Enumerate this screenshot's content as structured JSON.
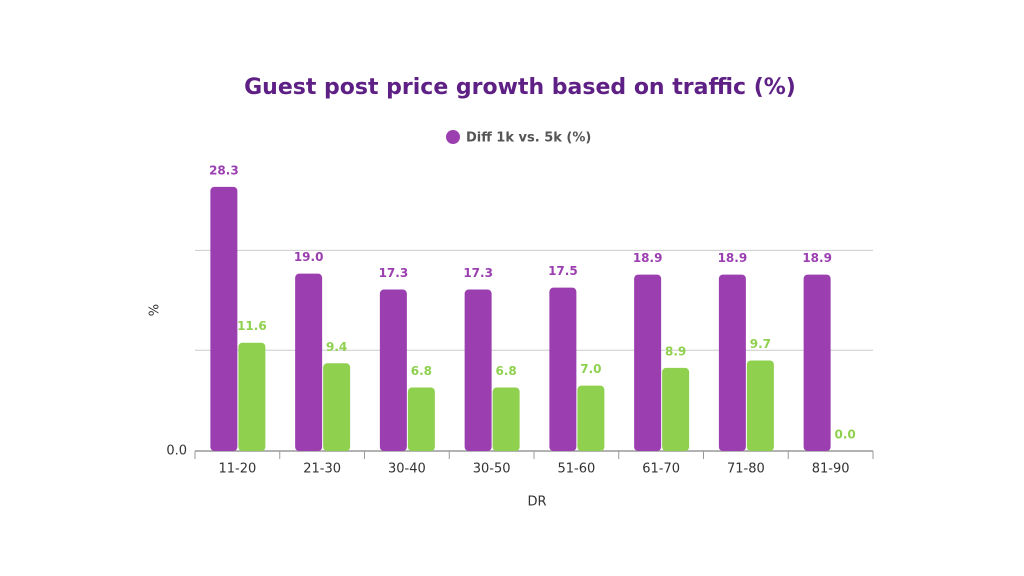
{
  "chart_data": {
    "type": "bar",
    "title": "Guest post price growth based on traffic (%)",
    "x_label": "DR",
    "y_label": "%",
    "categories": [
      "11-20",
      "21-30",
      "30-40",
      "30-50",
      "51-60",
      "61-70",
      "71-80",
      "81-90"
    ],
    "series": [
      {
        "name": "Diff 1k vs. 5k (%)",
        "color": "#9b3fb0",
        "values": [
          28.3,
          19.0,
          17.3,
          17.3,
          17.5,
          18.9,
          18.9,
          18.9
        ],
        "value_labels": [
          "28.3",
          "19.0",
          "17.3",
          "17.3",
          "17.5",
          "18.9",
          "18.9",
          "18.9"
        ]
      },
      {
        "name": null,
        "color": "#8fd14f",
        "values": [
          11.6,
          9.4,
          6.8,
          6.8,
          7.0,
          8.9,
          9.7,
          0.0
        ],
        "value_labels": [
          "11.6",
          "9.4",
          "6.8",
          "6.8",
          "7.0",
          "8.9",
          "9.7",
          "0.0"
        ]
      }
    ],
    "ylim": [
      0,
      30
    ],
    "yticks": [
      {
        "value": 0,
        "label": "0.0"
      },
      {
        "value": 10.8,
        "label": null
      },
      {
        "value": 21.5,
        "label": null
      }
    ],
    "grid": true
  }
}
